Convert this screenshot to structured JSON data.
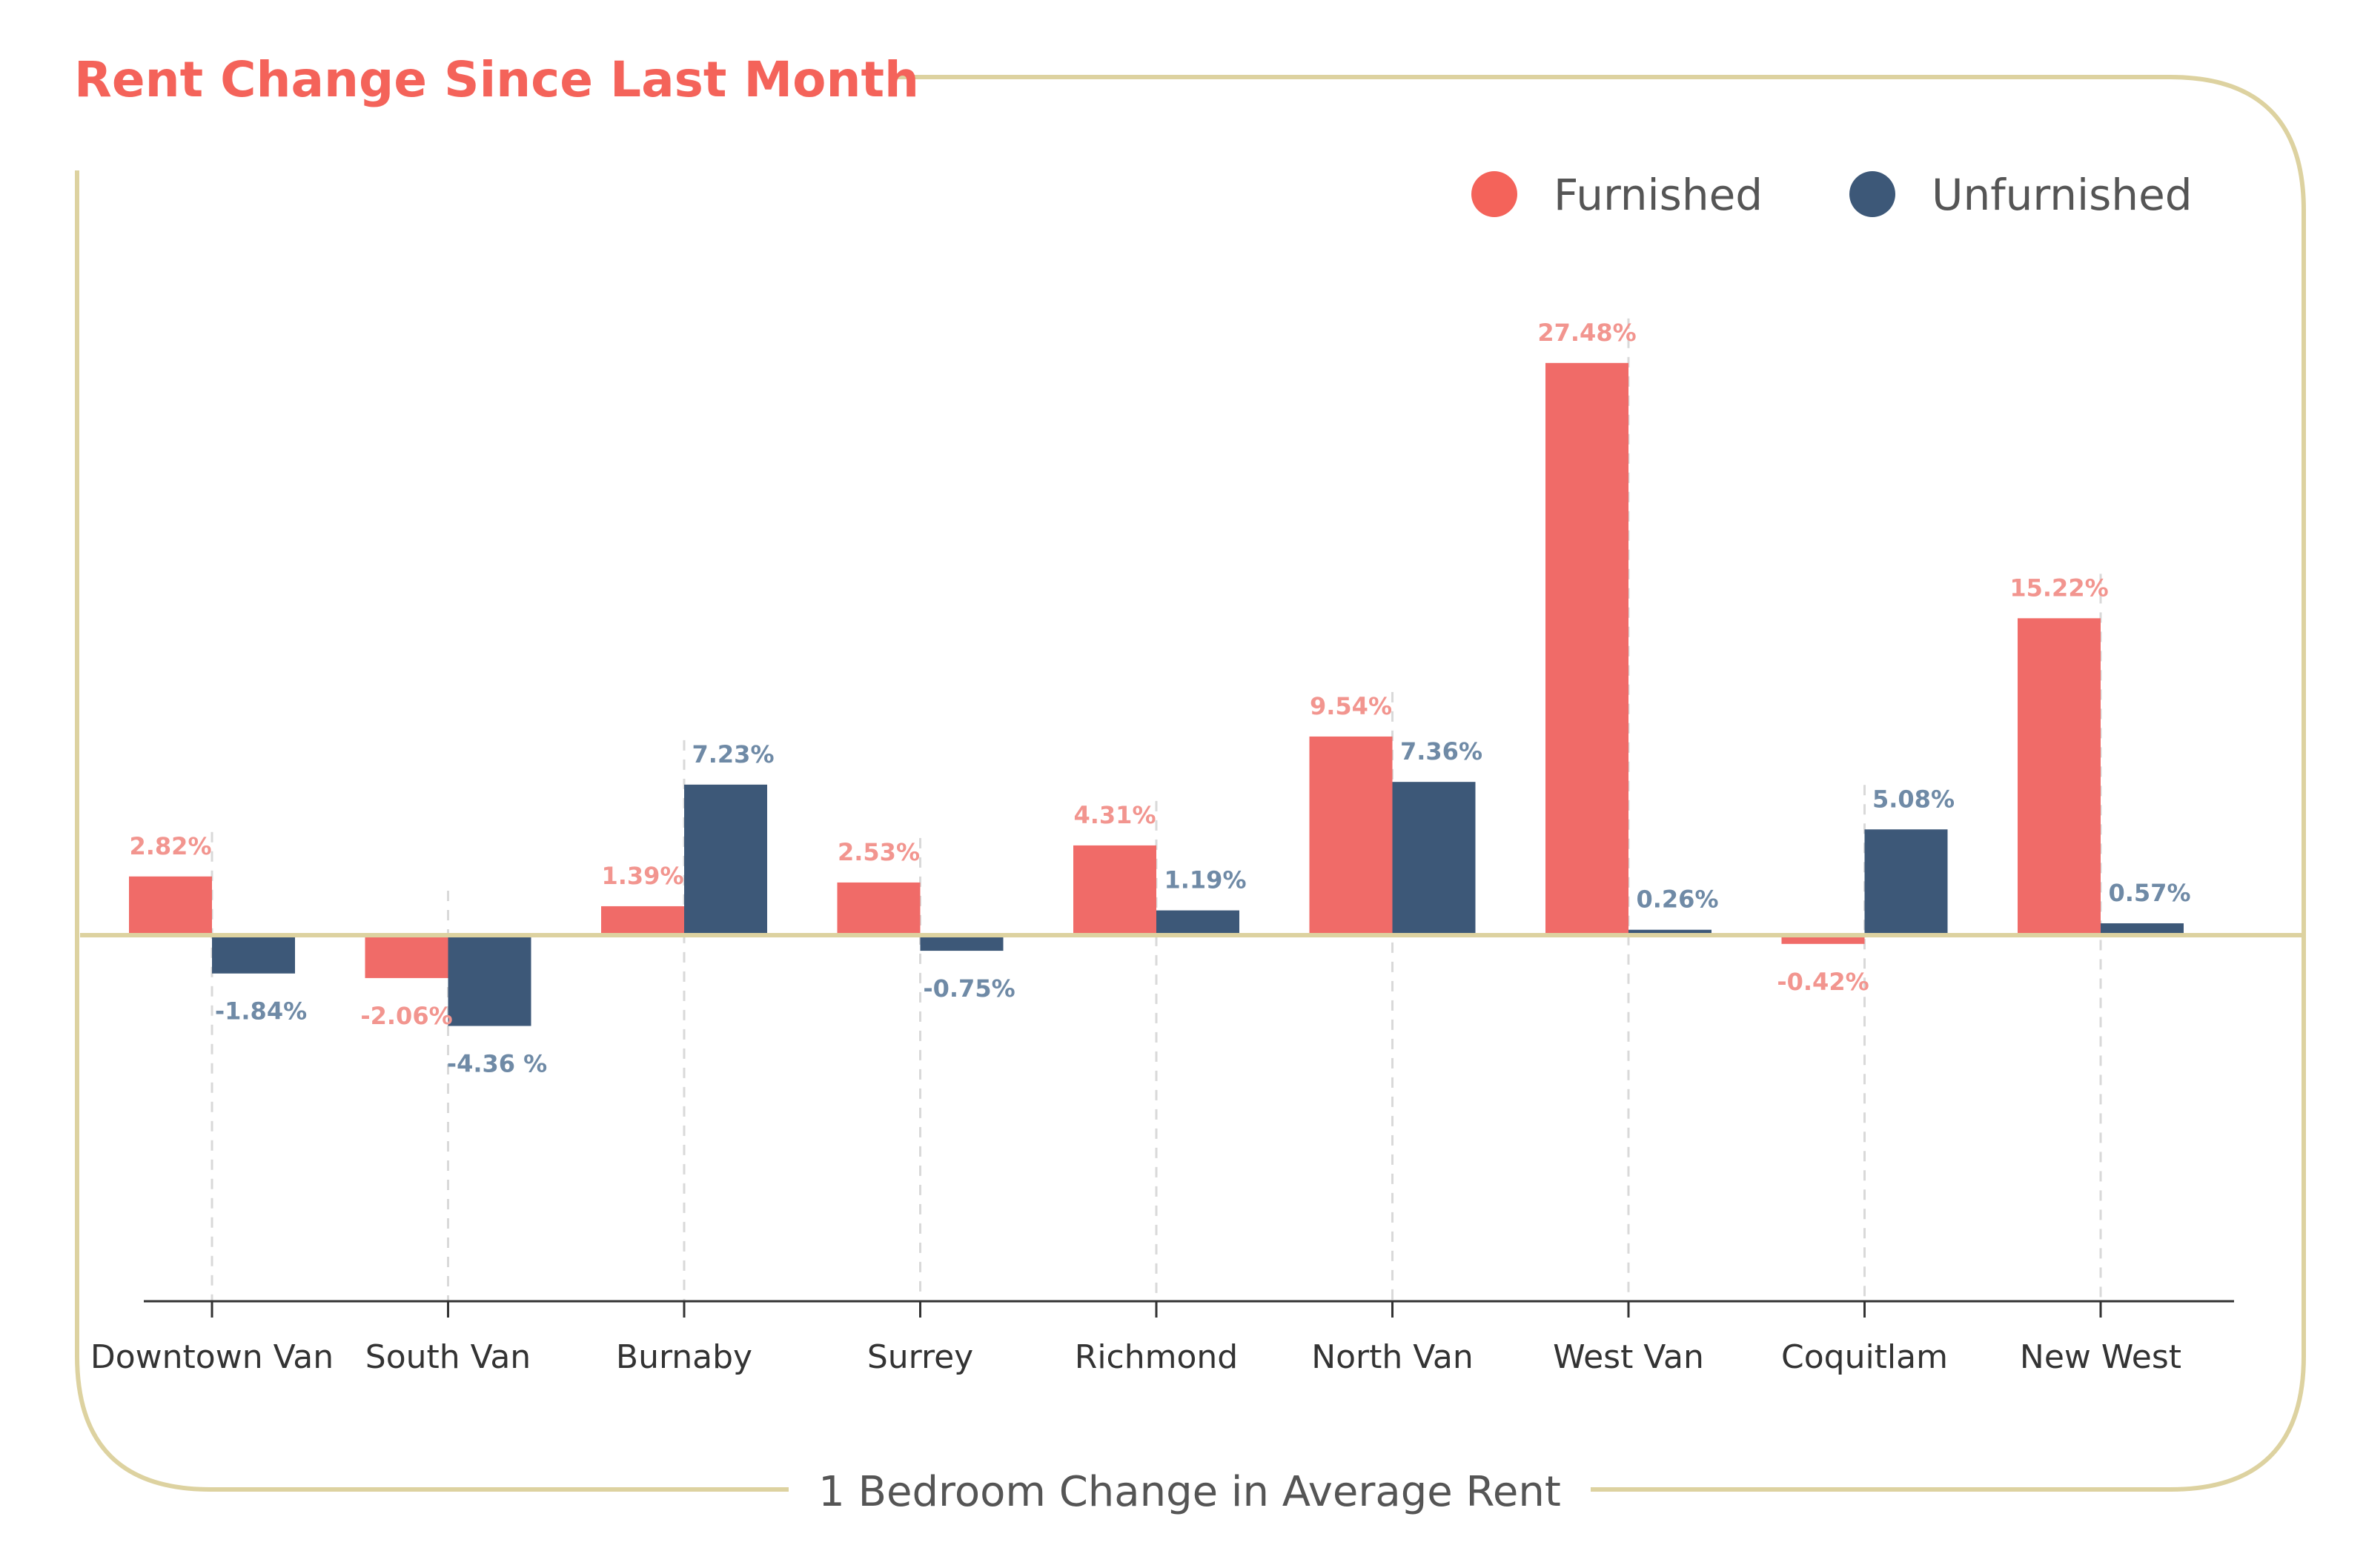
{
  "title": "Rent Change Since Last Month",
  "footer_label": "1 Bedroom Change in Average Rent",
  "colors": {
    "furnished": "#f06b68",
    "unfurnished": "#3d5878",
    "furnished_label": "#f2958f",
    "unfurnished_label": "#6f8aa6",
    "frame": "#ddd2a0",
    "title": "#f4635a",
    "axis": "#333333",
    "text": "#333333"
  },
  "legend": {
    "position": "top-right",
    "items": [
      {
        "label": "Furnished",
        "color": "#f4635a"
      },
      {
        "label": "Unfurnished",
        "color": "#3d5878"
      }
    ]
  },
  "chart_data": {
    "type": "bar",
    "title": "Rent Change Since Last Month",
    "xlabel": "1 Bedroom Change in Average Rent",
    "ylabel": "",
    "ylim": [
      -17,
      31
    ],
    "grid": false,
    "categories": [
      "Downtown Van",
      "South Van",
      "Burnaby",
      "Surrey",
      "Richmond",
      "North Van",
      "West Van",
      "Coquitlam",
      "New West"
    ],
    "series": [
      {
        "name": "Furnished",
        "values": [
          2.82,
          -2.06,
          1.39,
          2.53,
          4.31,
          9.54,
          27.48,
          -0.42,
          15.22
        ],
        "labels": [
          "2.82%",
          "-2.06%",
          "1.39%",
          "2.53%",
          "4.31%",
          "9.54%",
          "27.48%",
          "-0.42%",
          "15.22%"
        ]
      },
      {
        "name": "Unfurnished",
        "values": [
          -1.84,
          -4.36,
          7.23,
          -0.75,
          1.19,
          7.36,
          0.26,
          5.08,
          0.57
        ],
        "labels": [
          "-1.84%",
          "-4.36 %",
          "7.23%",
          "-0.75%",
          "1.19%",
          "7.36%",
          "0.26%",
          "5.08%",
          "0.57%"
        ]
      }
    ]
  }
}
